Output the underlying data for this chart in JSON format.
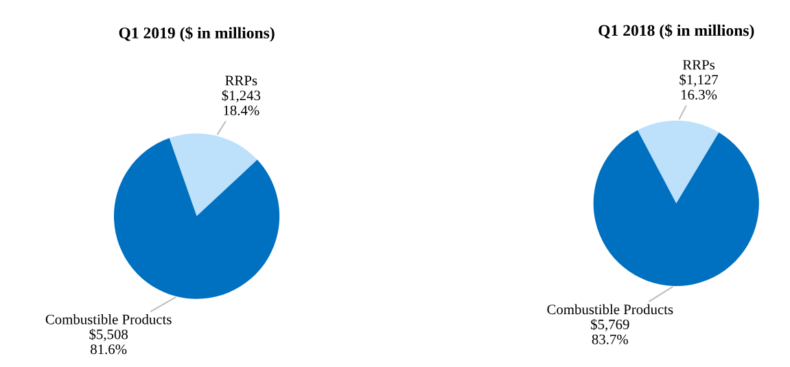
{
  "chart_data": [
    {
      "type": "pie",
      "title": "Q1 2019 ($ in millions)",
      "categories": [
        "RRPs",
        "Combustible Products"
      ],
      "values": [
        1243,
        5508
      ],
      "colors": [
        "#bde0fb",
        "#0070c0"
      ],
      "value_labels": [
        "$1,243\n18.4%",
        "$5,508\n81.6%"
      ]
    },
    {
      "type": "pie",
      "title": "Q1 2018 ($ in millions)",
      "categories": [
        "RRPs",
        "Combustible Products"
      ],
      "values": [
        1127,
        5769
      ],
      "colors": [
        "#bde0fb",
        "#0070c0"
      ],
      "value_labels": [
        "$1,127\n16.3%",
        "$5,769\n83.7%"
      ]
    }
  ]
}
